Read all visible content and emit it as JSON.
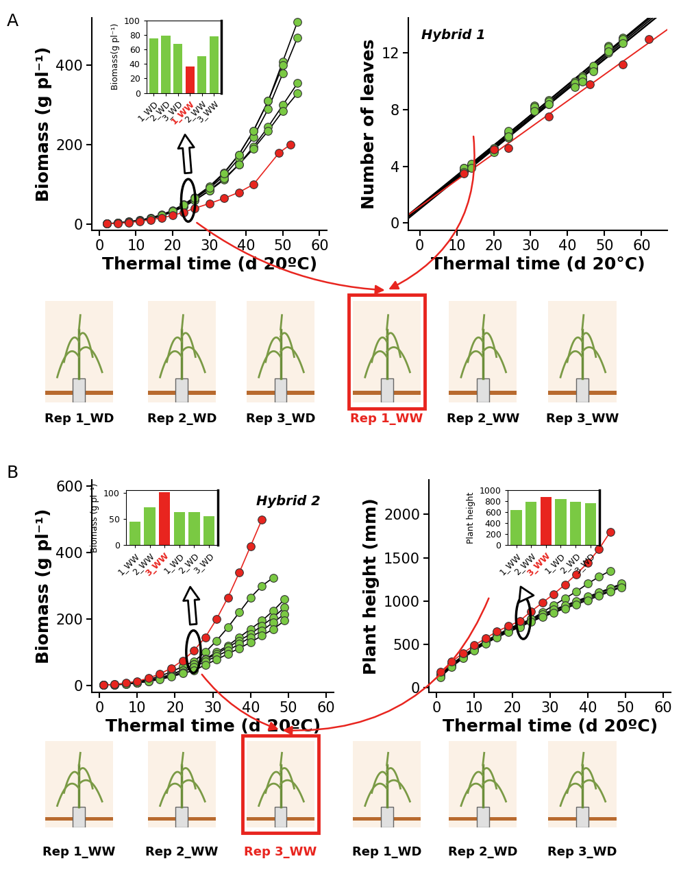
{
  "chart_data": [
    {
      "type": "line",
      "xlabel": "Thermal time (d 20ºC)",
      "ylabel": "Biomass (g pl⁻¹)",
      "xlim": [
        -2,
        62
      ],
      "xticks": [
        0,
        10,
        20,
        30,
        40,
        50,
        60
      ],
      "ylim": [
        -15,
        520
      ],
      "yticks": [
        0,
        200,
        400
      ],
      "grid": false,
      "color": "#7ac943",
      "marker": "o",
      "series": [
        {
          "color": "#7ac943",
          "x": [
            2,
            5,
            8,
            11,
            14,
            17,
            20,
            23,
            26,
            30,
            34,
            38,
            42,
            46,
            50,
            54
          ],
          "values": [
            1,
            3,
            6,
            10,
            16,
            24,
            35,
            50,
            68,
            95,
            130,
            175,
            235,
            310,
            410,
            510
          ]
        },
        {
          "color": "#7ac943",
          "x": [
            2,
            5,
            8,
            11,
            14,
            17,
            20,
            23,
            26,
            30,
            34,
            38,
            42,
            46,
            50,
            54
          ],
          "values": [
            1,
            3,
            6,
            10,
            15,
            23,
            33,
            47,
            64,
            90,
            122,
            165,
            220,
            290,
            380,
            470
          ]
        },
        {
          "color": "#7ac943",
          "x": [
            2,
            5,
            8,
            11,
            14,
            17,
            20,
            23,
            26,
            30,
            34,
            38,
            42,
            46,
            50,
            54
          ],
          "values": [
            1,
            3,
            5,
            9,
            14,
            21,
            31,
            44,
            60,
            84,
            112,
            150,
            195,
            245,
            300,
            355
          ]
        },
        {
          "color": "#7ac943",
          "x": [
            2,
            5,
            8,
            11,
            14,
            17,
            20,
            23,
            26,
            30,
            34,
            38,
            42,
            46,
            50,
            54
          ],
          "values": [
            1,
            3,
            5,
            9,
            14,
            21,
            31,
            44,
            60,
            85,
            115,
            150,
            190,
            235,
            285,
            330
          ]
        },
        {
          "color": "#7ac943",
          "x": [
            2,
            5,
            8,
            11,
            14,
            17,
            20,
            23,
            26,
            30,
            34,
            38,
            42,
            46,
            50
          ],
          "values": [
            1,
            3,
            5,
            9,
            14,
            22,
            33,
            48,
            66,
            92,
            128,
            175,
            235,
            310,
            400
          ]
        },
        {
          "color": "#e8251f",
          "x": [
            2,
            5,
            8,
            11,
            14,
            17,
            20,
            23,
            26,
            30,
            34,
            38,
            42,
            49,
            52
          ],
          "values": [
            1,
            2,
            4,
            7,
            11,
            16,
            22,
            30,
            40,
            52,
            65,
            80,
            100,
            180,
            200
          ]
        }
      ],
      "inset": {
        "type": "bar",
        "ylabel": "Biomass(g pl⁻¹)",
        "categories": [
          "1_WD",
          "2_WD",
          "3_WD",
          "1_WW",
          "2_WW",
          "3_WW"
        ],
        "values": [
          75,
          79,
          68,
          36,
          51,
          78
        ],
        "color": "#7ac943",
        "colors": [
          "#7ac943",
          "#7ac943",
          "#7ac943",
          "#e8251f",
          "#7ac943",
          "#7ac943"
        ],
        "ylim": [
          0,
          100
        ],
        "yticks": [
          0,
          20,
          40,
          60,
          80,
          100
        ]
      }
    },
    {
      "type": "scatter",
      "annotation": "Hybrid 1",
      "xlabel": "Thermal time (d 20°C)",
      "ylabel": "Number of leaves",
      "xlim": [
        -3,
        67
      ],
      "xticks": [
        0,
        10,
        20,
        30,
        40,
        50,
        60
      ],
      "ylim": [
        -0.5,
        14.5
      ],
      "yticks": [
        0,
        4,
        8,
        12
      ],
      "grid": false,
      "color": "#7ac943",
      "marker": "o",
      "series": [
        {
          "color": "#7ac943",
          "x": [
            12,
            14,
            20,
            24,
            31,
            35,
            42,
            44,
            47,
            51,
            55
          ],
          "values": [
            3.9,
            4.1,
            5.3,
            6.2,
            8.3,
            8.7,
            10.0,
            10.4,
            11.0,
            12.5,
            13.1
          ]
        },
        {
          "color": "#7ac943",
          "x": [
            12,
            14,
            20,
            24,
            31,
            35,
            42,
            44,
            47,
            51,
            55
          ],
          "values": [
            3.8,
            4.0,
            5.1,
            6.4,
            8.1,
            8.5,
            9.8,
            10.2,
            10.9,
            12.2,
            12.9
          ]
        },
        {
          "color": "#7ac943",
          "x": [
            12,
            14,
            20,
            24,
            31,
            35,
            42,
            44,
            47,
            51,
            55
          ],
          "values": [
            3.7,
            4.0,
            5.2,
            6.0,
            8.0,
            8.4,
            9.7,
            10.1,
            10.8,
            12.0,
            12.8
          ]
        },
        {
          "color": "#7ac943",
          "x": [
            12,
            14,
            20,
            24,
            31,
            35,
            42,
            44,
            47,
            51,
            55
          ],
          "values": [
            3.9,
            4.2,
            5.2,
            6.5,
            8.2,
            8.6,
            9.9,
            10.3,
            11.1,
            12.4,
            13.0
          ]
        },
        {
          "color": "#7ac943",
          "x": [
            12,
            14,
            20,
            24,
            31,
            35,
            42,
            44,
            47,
            51,
            55
          ],
          "values": [
            3.6,
            3.9,
            5.0,
            6.1,
            7.9,
            8.4,
            9.6,
            10.0,
            10.7,
            12.1,
            12.7
          ]
        },
        {
          "color": "#e8251f",
          "x": [
            12,
            20,
            24,
            35,
            46,
            55,
            62
          ],
          "values": [
            3.5,
            5.2,
            5.3,
            7.5,
            9.8,
            11.2,
            13.0
          ]
        }
      ]
    },
    {
      "type": "line",
      "annotation": "Hybrid 2",
      "xlabel": "Thermal time (d 20ºC)",
      "ylabel": "Biomass (g pl⁻¹)",
      "xlim": [
        -2,
        62
      ],
      "xticks": [
        0,
        10,
        20,
        30,
        40,
        50,
        60
      ],
      "ylim": [
        -20,
        620
      ],
      "yticks": [
        0,
        200,
        400,
        600
      ],
      "grid": false,
      "color": "#7ac943",
      "marker": "o",
      "series": [
        {
          "color": "#7ac943",
          "x": [
            1,
            4,
            7,
            10,
            13,
            16,
            19,
            22,
            25,
            28,
            31,
            34,
            37,
            40,
            43,
            46
          ],
          "values": [
            1,
            3,
            6,
            11,
            18,
            28,
            41,
            57,
            73,
            100,
            135,
            175,
            220,
            265,
            300,
            325
          ]
        },
        {
          "color": "#7ac943",
          "x": [
            1,
            4,
            7,
            10,
            13,
            16,
            19,
            22,
            25,
            28,
            31,
            34,
            37,
            40,
            43,
            46,
            49
          ],
          "values": [
            1,
            2,
            5,
            9,
            15,
            23,
            33,
            46,
            63,
            80,
            100,
            120,
            145,
            170,
            195,
            225,
            260
          ]
        },
        {
          "color": "#7ac943",
          "x": [
            1,
            4,
            7,
            10,
            13,
            16,
            19,
            22,
            25,
            28,
            31,
            34,
            37,
            40,
            43,
            46,
            49
          ],
          "values": [
            1,
            2,
            5,
            9,
            15,
            23,
            33,
            46,
            63,
            78,
            95,
            115,
            135,
            155,
            180,
            205,
            235
          ]
        },
        {
          "color": "#7ac943",
          "x": [
            1,
            4,
            7,
            10,
            13,
            16,
            19,
            22,
            25,
            28,
            31,
            34,
            37,
            40,
            43,
            46,
            49
          ],
          "values": [
            1,
            2,
            4,
            8,
            13,
            20,
            29,
            40,
            56,
            72,
            88,
            105,
            125,
            145,
            165,
            190,
            215
          ]
        },
        {
          "color": "#7ac943",
          "x": [
            1,
            4,
            7,
            10,
            13,
            16,
            19,
            22,
            25,
            28,
            31,
            34,
            37,
            40,
            43,
            46,
            49
          ],
          "values": [
            1,
            2,
            4,
            7,
            12,
            18,
            26,
            36,
            45,
            62,
            78,
            95,
            112,
            130,
            150,
            170,
            195
          ]
        },
        {
          "color": "#e8251f",
          "x": [
            1,
            4,
            7,
            10,
            13,
            16,
            19,
            22,
            25,
            28,
            31,
            34,
            37,
            40,
            43
          ],
          "values": [
            1,
            3,
            7,
            13,
            22,
            35,
            52,
            75,
            105,
            145,
            200,
            265,
            340,
            420,
            500
          ]
        }
      ],
      "inset": {
        "type": "bar",
        "ylabel": "Biomass (g pl⁻¹)",
        "categories": [
          "1_WW",
          "2_WW",
          "3_WW",
          "1_WD",
          "2_WD",
          "3_WD"
        ],
        "values": [
          45,
          73,
          102,
          63,
          63,
          56
        ],
        "color": "#7ac943",
        "colors": [
          "#7ac943",
          "#7ac943",
          "#e8251f",
          "#7ac943",
          "#7ac943",
          "#7ac943"
        ],
        "ylim": [
          0,
          105
        ],
        "yticks": [
          0,
          50,
          100
        ]
      }
    },
    {
      "type": "line",
      "xlabel": "Thermal time (d 20ºC)",
      "ylabel": "Plant height (mm)",
      "xlim": [
        -2,
        62
      ],
      "xticks": [
        0,
        10,
        20,
        30,
        40,
        50,
        60
      ],
      "ylim": [
        -50,
        2400
      ],
      "yticks": [
        0,
        500,
        1000,
        1500,
        2000
      ],
      "grid": false,
      "color": "#7ac943",
      "marker": "o",
      "series": [
        {
          "color": "#7ac943",
          "x": [
            1,
            4,
            7,
            10,
            13,
            16,
            19,
            22,
            25,
            28,
            31,
            34,
            37,
            40,
            43,
            46
          ],
          "values": [
            150,
            270,
            370,
            460,
            540,
            610,
            680,
            740,
            790,
            870,
            950,
            1030,
            1110,
            1200,
            1280,
            1350
          ]
        },
        {
          "color": "#7ac943",
          "x": [
            1,
            4,
            7,
            10,
            13,
            16,
            19,
            22,
            25,
            28,
            31,
            34,
            37,
            40,
            43,
            46,
            49
          ],
          "values": [
            140,
            260,
            360,
            450,
            530,
            600,
            660,
            720,
            780,
            840,
            890,
            940,
            990,
            1040,
            1090,
            1140,
            1190
          ]
        },
        {
          "color": "#7ac943",
          "x": [
            1,
            4,
            7,
            10,
            13,
            16,
            19,
            22,
            25,
            28,
            31,
            34,
            37,
            40,
            43,
            46,
            49
          ],
          "values": [
            130,
            250,
            350,
            440,
            520,
            590,
            650,
            710,
            770,
            825,
            875,
            925,
            975,
            1025,
            1075,
            1120,
            1170
          ]
        },
        {
          "color": "#7ac943",
          "x": [
            1,
            4,
            7,
            10,
            13,
            16,
            19,
            22,
            25,
            28,
            31,
            34,
            37,
            40,
            43,
            46,
            49
          ],
          "values": [
            150,
            270,
            370,
            460,
            540,
            610,
            670,
            730,
            790,
            850,
            900,
            950,
            1000,
            1050,
            1100,
            1150,
            1200
          ]
        },
        {
          "color": "#7ac943",
          "x": [
            1,
            4,
            7,
            10,
            13,
            16,
            19,
            22,
            25,
            28,
            31,
            34,
            37,
            40,
            43,
            46,
            49
          ],
          "values": [
            120,
            240,
            340,
            430,
            510,
            580,
            640,
            700,
            760,
            815,
            865,
            915,
            960,
            1010,
            1060,
            1110,
            1160
          ]
        },
        {
          "color": "#e8251f",
          "x": [
            1,
            4,
            7,
            10,
            13,
            16,
            19,
            22,
            25,
            28,
            31,
            34,
            37,
            40,
            43,
            46
          ],
          "values": [
            180,
            300,
            400,
            490,
            570,
            650,
            710,
            770,
            880,
            980,
            1080,
            1190,
            1310,
            1440,
            1600,
            1800
          ]
        }
      ],
      "inset": {
        "type": "bar",
        "ylabel": "Plant height",
        "categories": [
          "1_WW",
          "2_WW",
          "3_WW",
          "1_WD",
          "2_WD",
          "3_WD"
        ],
        "values": [
          640,
          790,
          880,
          840,
          790,
          760
        ],
        "color": "#7ac943",
        "colors": [
          "#7ac943",
          "#7ac943",
          "#e8251f",
          "#7ac943",
          "#7ac943",
          "#7ac943"
        ],
        "ylim": [
          0,
          1000
        ],
        "yticks": [
          0,
          200,
          400,
          600,
          800,
          1000
        ]
      }
    }
  ],
  "panels": [
    {
      "label": "A",
      "captions": [
        {
          "text": "Rep 1_WD",
          "color": "#000000"
        },
        {
          "text": "Rep 2_WD",
          "color": "#000000"
        },
        {
          "text": "Rep 3_WD",
          "color": "#000000"
        },
        {
          "text": "Rep 1_WW",
          "color": "#e8251f"
        },
        {
          "text": "Rep 2_WW",
          "color": "#000000"
        },
        {
          "text": "Rep 3_WW",
          "color": "#000000"
        }
      ]
    },
    {
      "label": "B",
      "captions": [
        {
          "text": "Rep 1_WW",
          "color": "#000000"
        },
        {
          "text": "Rep 2_WW",
          "color": "#000000"
        },
        {
          "text": "Rep 3_WW",
          "color": "#e8251f"
        },
        {
          "text": "Rep 1_WD",
          "color": "#000000"
        },
        {
          "text": "Rep 2_WD",
          "color": "#000000"
        },
        {
          "text": "Rep 3_WD",
          "color": "#000000"
        }
      ]
    }
  ]
}
